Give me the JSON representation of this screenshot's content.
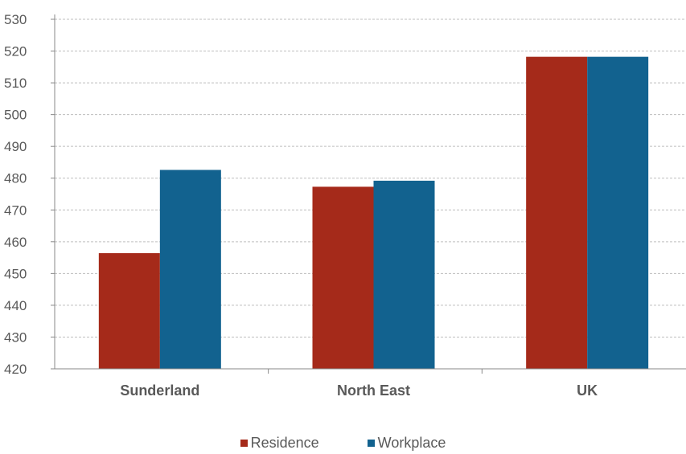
{
  "chart_data": {
    "type": "bar",
    "categories": [
      "Sunderland",
      "North East",
      "UK"
    ],
    "series": [
      {
        "name": "Residence",
        "values": [
          456.4,
          477.3,
          518.2
        ],
        "color": "#A52A1A"
      },
      {
        "name": "Workplace",
        "values": [
          482.6,
          479.2,
          518.2
        ],
        "color": "#12628F"
      }
    ],
    "ylim": [
      420,
      530
    ],
    "yticks": [
      "420",
      "430",
      "440",
      "450",
      "460",
      "470",
      "480",
      "490",
      "500",
      "510",
      "520",
      "530"
    ],
    "grid": true,
    "legend_position": "bottom"
  }
}
